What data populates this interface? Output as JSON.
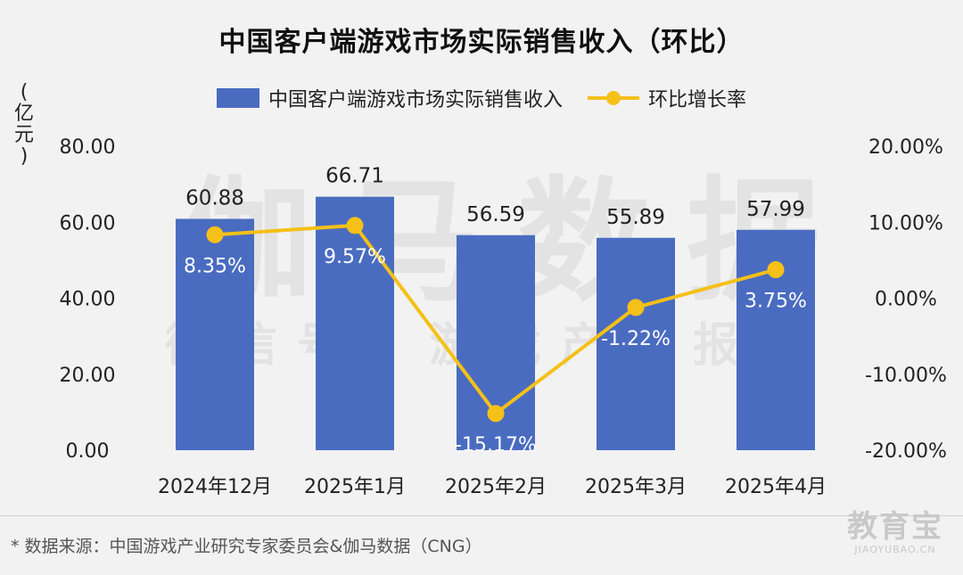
{
  "title": "中国客户端游戏市场实际销售收入（环比）",
  "y_unit": {
    "open": "(",
    "text": "亿元",
    "close": ")"
  },
  "legend": {
    "bar_label": "中国客户端游戏市场实际销售收入",
    "line_label": "环比增长率"
  },
  "colors": {
    "bar": "#4a6cc0",
    "line": "#f5c018"
  },
  "chart_data": {
    "type": "bar",
    "categories": [
      "2024年12月",
      "2025年1月",
      "2025年2月",
      "2025年3月",
      "2025年4月"
    ],
    "series": [
      {
        "name": "中国客户端游戏市场实际销售收入",
        "type": "bar",
        "axis": "left",
        "values": [
          60.88,
          66.71,
          56.59,
          55.89,
          57.99
        ],
        "labels": [
          "60.88",
          "66.71",
          "56.59",
          "55.89",
          "57.99"
        ]
      },
      {
        "name": "环比增长率",
        "type": "line",
        "axis": "right",
        "values": [
          8.35,
          9.57,
          -15.17,
          -1.22,
          3.75
        ],
        "labels": [
          "8.35%",
          "9.57%",
          "-15.17%",
          "-1.22%",
          "3.75%"
        ]
      }
    ],
    "left_axis": {
      "ylim": [
        0,
        80
      ],
      "ticks": [
        "0.00",
        "20.00",
        "40.00",
        "60.00",
        "80.00"
      ]
    },
    "right_axis": {
      "ylim": [
        -20,
        20
      ],
      "ticks": [
        "-20.00%",
        "-10.00%",
        "0.00%",
        "10.00%",
        "20.00%"
      ]
    },
    "grid": false,
    "legend_position": "top-center"
  },
  "watermark": {
    "main": "伽马数据",
    "sub": "微信号：游戏产业报告"
  },
  "source": "* 数据来源：中国游戏产业研究专家委员会&伽马数据（CNG）",
  "logo": {
    "main": "教育宝",
    "sub": "JIAOYUBAO.CN"
  }
}
